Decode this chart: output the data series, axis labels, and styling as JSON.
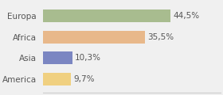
{
  "categories": [
    "Europa",
    "Africa",
    "Asia",
    "America"
  ],
  "values": [
    44.5,
    35.5,
    10.3,
    9.7
  ],
  "bar_colors": [
    "#a8bc8f",
    "#e8b88a",
    "#7b86c2",
    "#f0d080"
  ],
  "labels": [
    "44,5%",
    "35,5%",
    "10,3%",
    "9,7%"
  ],
  "xlim": [
    0,
    62
  ],
  "background_color": "#f0f0f0",
  "bar_height": 0.6,
  "label_fontsize": 7.5,
  "tick_fontsize": 7.5,
  "label_color": "#555555",
  "tick_color": "#555555"
}
